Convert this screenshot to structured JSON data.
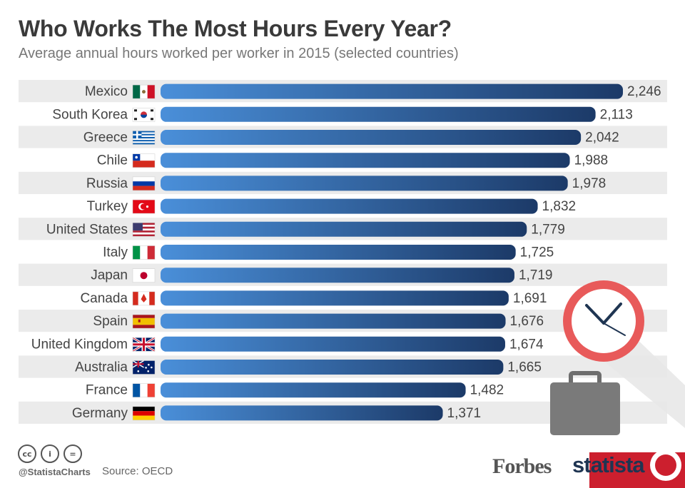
{
  "header": {
    "title": "Who Works The Most Hours Every Year?",
    "subtitle": "Average annual hours worked per worker in 2015 (selected countries)"
  },
  "footer": {
    "handle": "@StatistaCharts",
    "source": "Source: OECD",
    "license_icons": [
      "cc-icon",
      "by-icon",
      "nd-icon"
    ],
    "forbes_logo": "Forbes",
    "statista_logo": "statista"
  },
  "colors": {
    "bar_dark": "#1c3a68",
    "bar_light": "#4a8fd9",
    "stripe": "#ebebeb",
    "clock_ring": "#e85a5a",
    "briefcase": "#7a7a7a"
  },
  "chart_data": {
    "type": "bar",
    "orientation": "horizontal",
    "title": "Who Works The Most Hours Every Year?",
    "subtitle": "Average annual hours worked per worker in 2015 (selected countries)",
    "categories": [
      "Mexico",
      "South Korea",
      "Greece",
      "Chile",
      "Russia",
      "Turkey",
      "United States",
      "Italy",
      "Japan",
      "Canada",
      "Spain",
      "United Kingdom",
      "Australia",
      "France",
      "Germany"
    ],
    "values": [
      2246,
      2113,
      2042,
      1988,
      1978,
      1832,
      1779,
      1725,
      1719,
      1691,
      1676,
      1674,
      1665,
      1482,
      1371
    ],
    "value_labels": [
      "2,246",
      "2,113",
      "2,042",
      "1,988",
      "1,978",
      "1,832",
      "1,779",
      "1,725",
      "1,719",
      "1,691",
      "1,676",
      "1,674",
      "1,665",
      "1,482",
      "1,371"
    ],
    "flags": [
      "mexico",
      "south-korea",
      "greece",
      "chile",
      "russia",
      "turkey",
      "united-states",
      "italy",
      "japan",
      "canada",
      "spain",
      "united-kingdom",
      "australia",
      "france",
      "germany"
    ],
    "xlim": [
      0,
      2246
    ],
    "grid": false,
    "legend": "none"
  }
}
